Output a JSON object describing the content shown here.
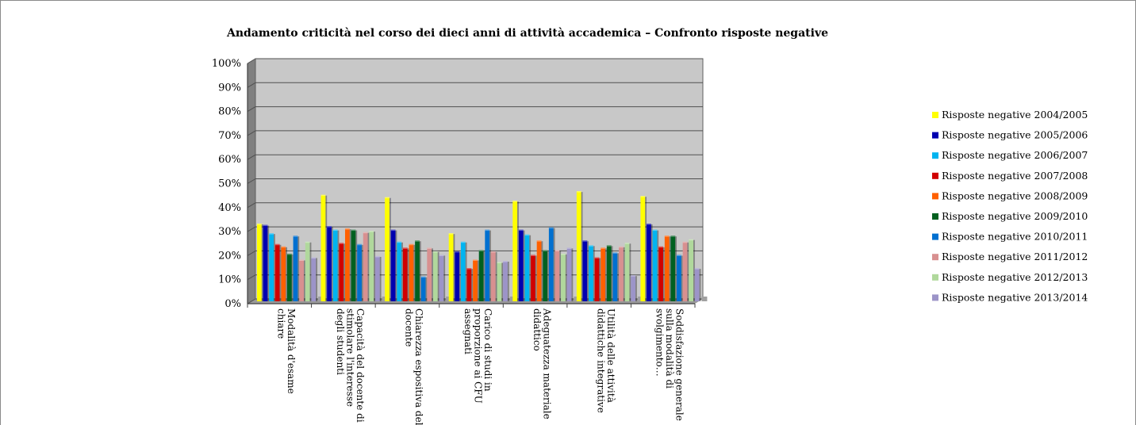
{
  "chart_data": {
    "type": "bar",
    "title": "Andamento criticità nel corso dei dieci anni di attività accademica – Confronto risposte negative",
    "xlabel": "",
    "ylabel": "",
    "ylim": [
      0,
      1
    ],
    "y_ticks": [
      "0%",
      "10%",
      "20%",
      "30%",
      "40%",
      "50%",
      "60%",
      "70%",
      "80%",
      "90%",
      "100%"
    ],
    "legend_position": "right",
    "grid": true,
    "categories": [
      [
        "Modalità d'esame",
        "chiare"
      ],
      [
        "Capacità del docente di",
        "stimolare l'interesse",
        "degli studenti"
      ],
      [
        "Chiarezza espositiva del",
        "docente"
      ],
      [
        "Carico di studi in",
        "proporzione ai CFU",
        "assegnati"
      ],
      [
        "Adeguatezza materiale",
        "didattico"
      ],
      [
        "Utilità delle attività",
        "didattiche integrative"
      ],
      [
        "Soddisfazione generale",
        "sulla modalità di",
        "svolgimento…"
      ]
    ],
    "series": [
      {
        "name": "Risposte negative 2004/2005",
        "color": "#ffff00",
        "values": [
          0.32,
          0.44,
          0.43,
          0.28,
          0.415,
          0.455,
          0.435
        ]
      },
      {
        "name": "Risposte negative 2005/2006",
        "color": "#0000b0",
        "values": [
          0.315,
          0.31,
          0.295,
          0.205,
          0.295,
          0.25,
          0.32
        ]
      },
      {
        "name": "Risposte negative 2006/2007",
        "color": "#00b4f0",
        "values": [
          0.28,
          0.295,
          0.245,
          0.245,
          0.275,
          0.23,
          0.295
        ]
      },
      {
        "name": "Risposte negative 2007/2008",
        "color": "#d00000",
        "values": [
          0.235,
          0.24,
          0.22,
          0.135,
          0.19,
          0.18,
          0.225
        ]
      },
      {
        "name": "Risposte negative 2008/2009",
        "color": "#ff6000",
        "values": [
          0.225,
          0.3,
          0.235,
          0.17,
          0.25,
          0.22,
          0.27
        ]
      },
      {
        "name": "Risposte negative 2009/2010",
        "color": "#006020",
        "values": [
          0.195,
          0.295,
          0.25,
          0.21,
          0.21,
          0.23,
          0.27
        ]
      },
      {
        "name": "Risposte negative 2010/2011",
        "color": "#0070d0",
        "values": [
          0.27,
          0.235,
          0.1,
          0.295,
          0.305,
          0.2,
          0.19
        ]
      },
      {
        "name": "Risposte negative 2011/2012",
        "color": "#d89090",
        "values": [
          0.17,
          0.285,
          0.22,
          0.205,
          0.21,
          0.225,
          0.245
        ]
      },
      {
        "name": "Risposte negative 2012/2013",
        "color": "#b0d89c",
        "values": [
          0.245,
          0.29,
          0.205,
          0.16,
          0.195,
          0.24,
          0.255
        ]
      },
      {
        "name": "Risposte negative 2013/2014",
        "color": "#9c94c8",
        "values": [
          0.18,
          0.185,
          0.19,
          0.165,
          0.22,
          0.105,
          0.135
        ]
      }
    ]
  }
}
